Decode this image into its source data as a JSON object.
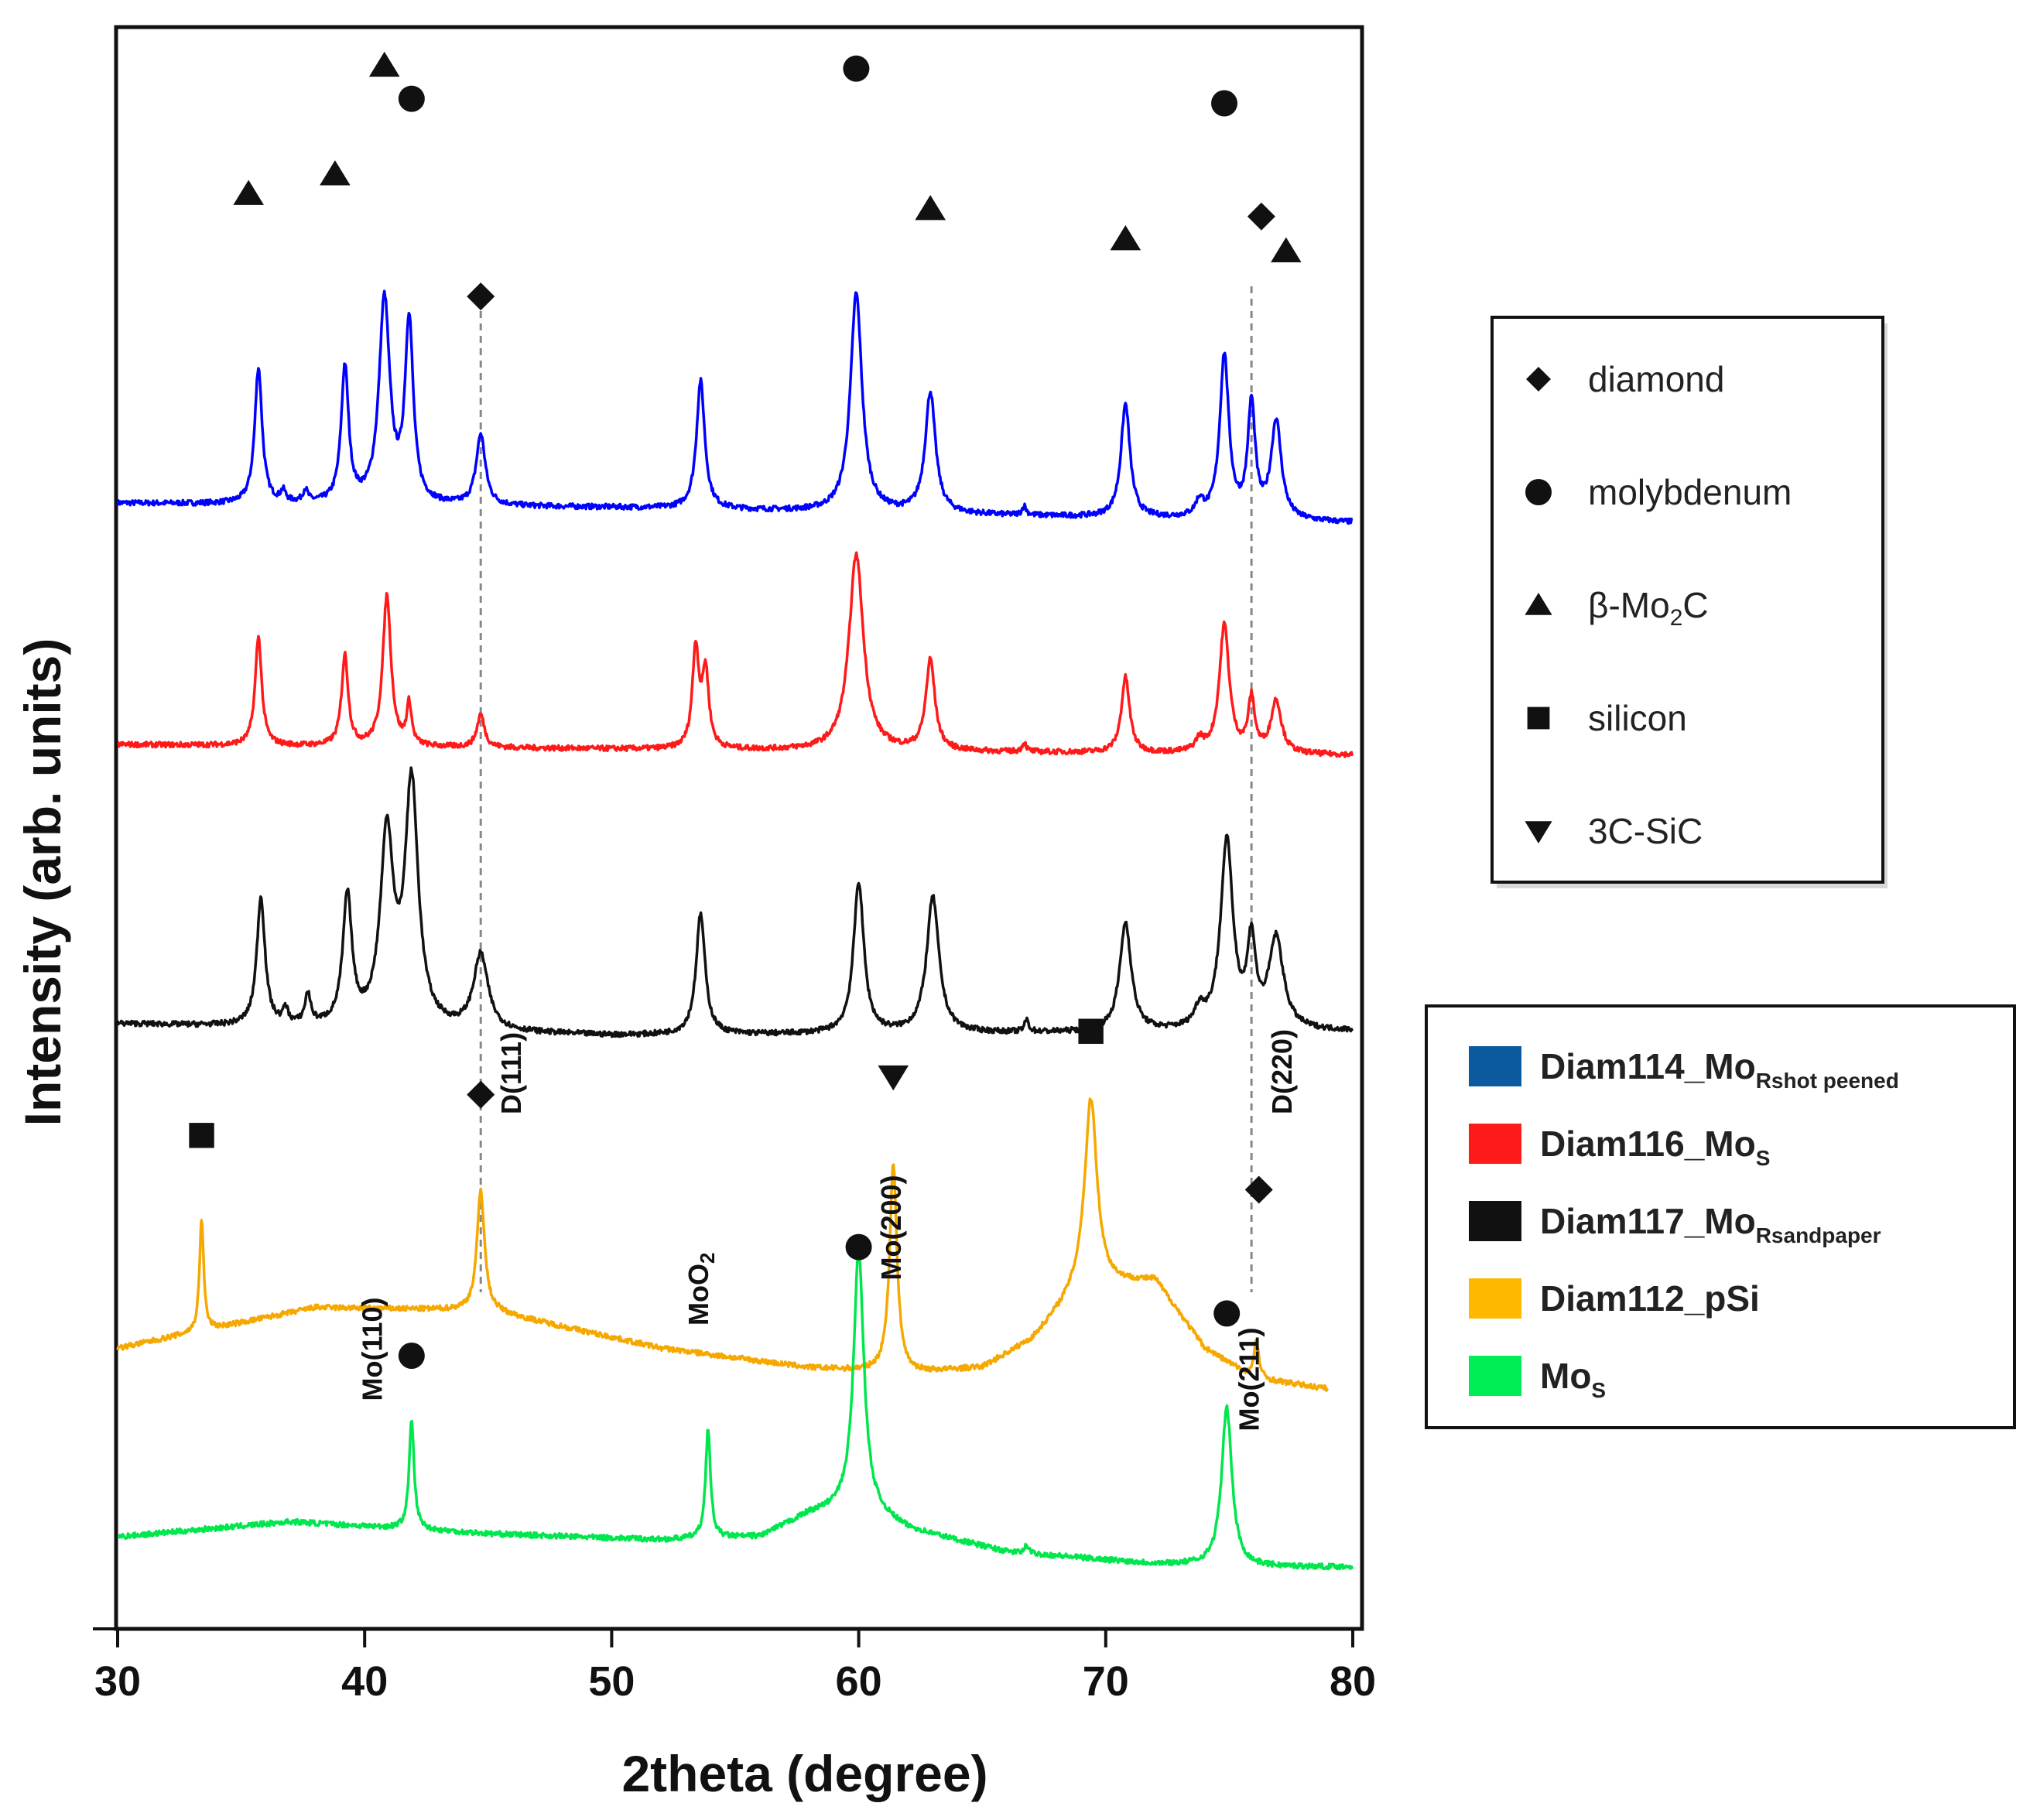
{
  "chart_data": {
    "type": "line",
    "xlabel": "2theta (degree)",
    "ylabel": "Intensity (arb. units)",
    "xlim": [
      30,
      80
    ],
    "xticks": [
      30,
      40,
      50,
      60,
      70,
      80
    ],
    "grid": false,
    "series": [
      {
        "legend_main": "Diam114_Mo",
        "legend_sub": "Rshot peened",
        "color": "#0000ff",
        "x_end": 80,
        "baseline": [
          [
            30,
            7.05
          ],
          [
            50,
            7.02
          ],
          [
            80,
            6.92
          ]
        ],
        "peaks": [
          [
            35.7,
            0.9,
            0.18
          ],
          [
            36.7,
            0.07,
            0.12
          ],
          [
            37.6,
            0.08,
            0.12
          ],
          [
            39.2,
            0.9,
            0.18
          ],
          [
            40.8,
            1.35,
            0.26
          ],
          [
            41.8,
            1.2,
            0.2
          ],
          [
            44.7,
            0.47,
            0.22
          ],
          [
            53.6,
            0.85,
            0.2
          ],
          [
            59.9,
            1.45,
            0.28
          ],
          [
            62.9,
            0.8,
            0.25
          ],
          [
            66.7,
            0.06,
            0.1
          ],
          [
            70.8,
            0.75,
            0.22
          ],
          [
            73.8,
            0.1,
            0.2
          ],
          [
            74.8,
            1.08,
            0.22
          ],
          [
            75.9,
            0.75,
            0.18
          ],
          [
            76.9,
            0.65,
            0.25
          ]
        ]
      },
      {
        "legend_main": "Diam116_Mo",
        "legend_sub": "S",
        "color": "#ff1a1a",
        "x_end": 80,
        "baseline": [
          [
            30,
            5.45
          ],
          [
            50,
            5.42
          ],
          [
            80,
            5.38
          ]
        ],
        "peaks": [
          [
            35.7,
            0.72,
            0.16
          ],
          [
            39.2,
            0.6,
            0.16
          ],
          [
            40.9,
            1.0,
            0.2
          ],
          [
            41.8,
            0.27,
            0.12
          ],
          [
            44.7,
            0.22,
            0.18
          ],
          [
            53.4,
            0.66,
            0.16
          ],
          [
            53.8,
            0.5,
            0.16
          ],
          [
            59.9,
            1.3,
            0.35
          ],
          [
            62.9,
            0.6,
            0.22
          ],
          [
            66.7,
            0.06,
            0.1
          ],
          [
            70.8,
            0.5,
            0.2
          ],
          [
            73.8,
            0.08,
            0.2
          ],
          [
            74.8,
            0.85,
            0.24
          ],
          [
            75.9,
            0.35,
            0.16
          ],
          [
            76.9,
            0.35,
            0.25
          ]
        ]
      },
      {
        "legend_main": "Diam117_Mo",
        "legend_sub": "Rsandpaper",
        "color": "#111111",
        "x_end": 80,
        "baseline": [
          [
            30,
            3.6
          ],
          [
            50,
            3.52
          ],
          [
            80,
            3.55
          ]
        ],
        "peaks": [
          [
            35.8,
            0.85,
            0.2
          ],
          [
            36.8,
            0.1,
            0.12
          ],
          [
            37.7,
            0.2,
            0.14
          ],
          [
            39.3,
            0.85,
            0.22
          ],
          [
            40.9,
            1.25,
            0.32
          ],
          [
            41.9,
            1.6,
            0.32
          ],
          [
            44.7,
            0.5,
            0.35
          ],
          [
            53.6,
            0.8,
            0.22
          ],
          [
            60.0,
            1.0,
            0.25
          ],
          [
            63.0,
            0.9,
            0.3
          ],
          [
            66.8,
            0.08,
            0.1
          ],
          [
            70.8,
            0.72,
            0.28
          ],
          [
            73.8,
            0.12,
            0.25
          ],
          [
            74.9,
            1.25,
            0.3
          ],
          [
            75.9,
            0.55,
            0.2
          ],
          [
            76.9,
            0.6,
            0.35
          ]
        ]
      },
      {
        "legend_main": "Diam112_pSi",
        "legend_sub": "",
        "color": "#f5a800",
        "x_end": 79,
        "baseline": [
          [
            30,
            1.45
          ],
          [
            33,
            1.55
          ],
          [
            38,
            1.72
          ],
          [
            45,
            1.7
          ],
          [
            52,
            1.45
          ],
          [
            58,
            1.32
          ],
          [
            62,
            1.28
          ],
          [
            65,
            1.32
          ],
          [
            67,
            1.5
          ],
          [
            69,
            1.85
          ],
          [
            72,
            1.9
          ],
          [
            74,
            1.45
          ],
          [
            76,
            1.25
          ],
          [
            79,
            1.18
          ]
        ],
        "peaks": [
          [
            33.4,
            0.75,
            0.1
          ],
          [
            44.7,
            0.8,
            0.18
          ],
          [
            61.4,
            1.38,
            0.18
          ],
          [
            69.4,
            1.25,
            0.3
          ],
          [
            76.1,
            0.25,
            0.12
          ]
        ]
      },
      {
        "legend_main": "Mo",
        "legend_sub": "S",
        "color": "#00e64d",
        "x_end": 80,
        "baseline": [
          [
            30,
            0.2
          ],
          [
            37,
            0.3
          ],
          [
            45,
            0.22
          ],
          [
            52,
            0.18
          ],
          [
            56,
            0.2
          ],
          [
            58,
            0.35
          ],
          [
            60,
            0.4
          ],
          [
            62,
            0.25
          ],
          [
            66,
            0.1
          ],
          [
            72,
            0.02
          ],
          [
            76,
            0.0
          ],
          [
            80,
            0.0
          ]
        ],
        "peaks": [
          [
            41.9,
            0.72,
            0.12
          ],
          [
            53.9,
            0.72,
            0.12
          ],
          [
            60.0,
            1.7,
            0.25
          ],
          [
            66.8,
            0.06,
            0.08
          ],
          [
            74.9,
            1.05,
            0.25
          ]
        ]
      }
    ],
    "markers": [
      {
        "shape": "triangle-up",
        "x": 35.3,
        "y": 9.1
      },
      {
        "shape": "triangle-up",
        "x": 38.8,
        "y": 9.23
      },
      {
        "shape": "triangle-up",
        "x": 40.8,
        "y": 9.95
      },
      {
        "shape": "circle",
        "x": 41.9,
        "y": 9.73
      },
      {
        "shape": "diamond",
        "x": 44.7,
        "y": 8.42
      },
      {
        "shape": "circle",
        "x": 59.9,
        "y": 9.93
      },
      {
        "shape": "triangle-up",
        "x": 62.9,
        "y": 9.0
      },
      {
        "shape": "triangle-up",
        "x": 70.8,
        "y": 8.8
      },
      {
        "shape": "circle",
        "x": 74.8,
        "y": 9.7
      },
      {
        "shape": "diamond",
        "x": 76.3,
        "y": 8.95
      },
      {
        "shape": "triangle-up",
        "x": 77.3,
        "y": 8.72
      },
      {
        "shape": "square",
        "x": 33.4,
        "y": 2.86
      },
      {
        "shape": "diamond",
        "x": 44.7,
        "y": 3.13
      },
      {
        "shape": "triangle-down",
        "x": 61.4,
        "y": 3.25
      },
      {
        "shape": "square",
        "x": 69.4,
        "y": 3.55
      },
      {
        "shape": "diamond",
        "x": 76.2,
        "y": 2.5
      },
      {
        "shape": "circle",
        "x": 60.0,
        "y": 2.12
      },
      {
        "shape": "circle",
        "x": 41.9,
        "y": 1.4
      },
      {
        "shape": "circle",
        "x": 74.9,
        "y": 1.68
      }
    ],
    "reference_lines": [
      {
        "x": 44.7,
        "label": "D(111)"
      },
      {
        "x": 75.9,
        "label": "D(220)"
      }
    ],
    "annotations": [
      {
        "text": "Mo(110)",
        "x": 40.7,
        "y": 1.1
      },
      {
        "text": "MoO",
        "sub": "2",
        "x": 53.9,
        "y": 1.6
      },
      {
        "text": "Mo(200)",
        "x": 61.7,
        "y": 1.9
      },
      {
        "text": "Mo(211)",
        "x": 76.2,
        "y": 0.9
      }
    ],
    "legend_markers": {
      "placement": "right",
      "items": [
        {
          "shape": "diamond",
          "label": "diamond"
        },
        {
          "shape": "circle",
          "label": "molybdenum"
        },
        {
          "shape": "triangle-up",
          "label": "β-Mo",
          "sub": "2",
          "label_end": "C"
        },
        {
          "shape": "square",
          "label": "silicon"
        },
        {
          "shape": "triangle-down",
          "label": "3C-SiC"
        }
      ]
    },
    "legend_series": {
      "placement": "right",
      "colors": [
        "#0b5aa0",
        "#ff1a1a",
        "#111111",
        "#ffb800",
        "#00ee55"
      ]
    }
  }
}
